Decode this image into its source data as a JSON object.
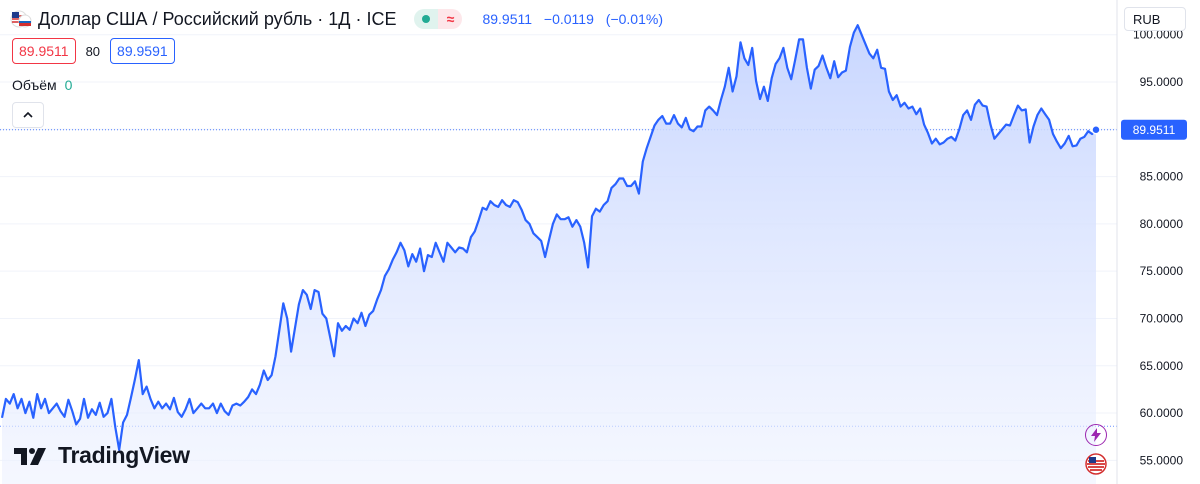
{
  "header": {
    "title": "Доллар США / Российский рубль · 1Д · ICE",
    "last": "89.9511",
    "change": "−0.0119",
    "change_pct": "(−0.01%)"
  },
  "quote": {
    "bid": "89.9511",
    "spread": "80",
    "ask": "89.9591"
  },
  "volume": {
    "label": "Объём",
    "value": "0"
  },
  "currency_button": "RUB",
  "logo": {
    "text": "TradingView"
  },
  "colors": {
    "line": "#2962ff",
    "fill_top": "#c5d4ff",
    "fill_bottom": "#f0f4ff",
    "grid": "#f0f3fa",
    "price_tag": "#2962ff"
  },
  "chart_data": {
    "type": "area",
    "ylim": [
      52.5,
      102.4
    ],
    "y_ticks": [
      "100.0000",
      "95.0000",
      "90.0000",
      "85.0000",
      "80.0000",
      "75.0000",
      "70.0000",
      "65.0000",
      "60.0000",
      "55.0000"
    ],
    "last_price_label": "89.9511",
    "reference_level": 58.6,
    "values": [
      59.5,
      61.5,
      61.0,
      62.0,
      60.5,
      61.5,
      60.0,
      61.2,
      59.5,
      62.0,
      60.5,
      61.5,
      60.0,
      60.5,
      61.0,
      60.2,
      59.6,
      61.4,
      60.2,
      58.8,
      59.4,
      61.5,
      59.5,
      60.4,
      59.8,
      61.1,
      59.6,
      60.0,
      61.5,
      58.5,
      56.1,
      59.0,
      59.8,
      61.6,
      63.5,
      65.6,
      62.0,
      62.8,
      61.5,
      60.5,
      61.2,
      60.5,
      61.0,
      60.4,
      61.6,
      60.1,
      59.6,
      60.4,
      61.5,
      60.0,
      60.5,
      61.0,
      60.5,
      60.5,
      61.0,
      60.0,
      61.0,
      60.2,
      59.8,
      60.8,
      61.0,
      60.8,
      61.2,
      61.7,
      62.5,
      62.0,
      63.0,
      64.5,
      63.5,
      64.0,
      66.0,
      68.8,
      71.6,
      70.0,
      66.5,
      69.0,
      71.5,
      73.0,
      72.5,
      71.0,
      73.0,
      72.8,
      70.5,
      70.0,
      68.0,
      66.0,
      69.5,
      68.7,
      69.2,
      68.8,
      70.0,
      69.5,
      70.6,
      69.2,
      70.4,
      70.8,
      72.0,
      73.0,
      74.5,
      75.2,
      76.2,
      77.0,
      78.0,
      77.2,
      75.5,
      76.8,
      76.0,
      77.4,
      75.0,
      76.7,
      76.5,
      78.0,
      77.0,
      76.0,
      78.0,
      77.5,
      77.0,
      77.5,
      77.4,
      77.0,
      78.6,
      79.2,
      80.4,
      81.7,
      81.5,
      82.4,
      82.0,
      81.8,
      82.5,
      82.0,
      81.8,
      82.5,
      82.3,
      81.5,
      80.4,
      80.0,
      79.0,
      78.6,
      78.2,
      76.5,
      78.3,
      80.0,
      81.0,
      80.5,
      80.5,
      80.7,
      79.7,
      80.4,
      79.7,
      78.0,
      75.4,
      80.8,
      81.6,
      81.3,
      82.0,
      82.4,
      83.8,
      84.2,
      84.8,
      84.8,
      84.0,
      84.0,
      84.5,
      83.2,
      86.6,
      88.0,
      89.2,
      90.4,
      91.0,
      91.4,
      90.6,
      90.6,
      91.5,
      90.6,
      90.2,
      91.2,
      90.0,
      89.8,
      90.3,
      90.3,
      92.0,
      92.4,
      92.0,
      91.5,
      93.1,
      94.5,
      96.5,
      94.0,
      95.6,
      99.2,
      97.5,
      96.8,
      98.6,
      95.1,
      93.2,
      94.5,
      93.0,
      95.4,
      96.9,
      97.5,
      98.6,
      96.5,
      95.3,
      97.3,
      99.5,
      99.5,
      96.5,
      94.3,
      96.3,
      96.7,
      97.8,
      96.5,
      95.4,
      97.2,
      95.5,
      96.0,
      96.2,
      98.7,
      100.2,
      101.0,
      100.0,
      99.0,
      98.0,
      97.5,
      98.4,
      96.5,
      96.4,
      94.0,
      93.1,
      93.6,
      92.4,
      92.8,
      92.2,
      92.4,
      91.6,
      92.2,
      90.5,
      89.6,
      88.5,
      89.0,
      88.4,
      88.6,
      89.0,
      89.2,
      88.8,
      90.0,
      91.5,
      92.0,
      91.0,
      92.6,
      93.1,
      92.5,
      92.4,
      90.5,
      89.0,
      89.5,
      90.0,
      90.5,
      90.4,
      91.5,
      92.5,
      92.0,
      92.1,
      88.6,
      90.3,
      91.5,
      92.2,
      91.6,
      91.0,
      89.5,
      88.7,
      88.0,
      88.5,
      89.3,
      88.2,
      88.3,
      89.0,
      89.2,
      89.8,
      89.5,
      89.95
    ]
  }
}
